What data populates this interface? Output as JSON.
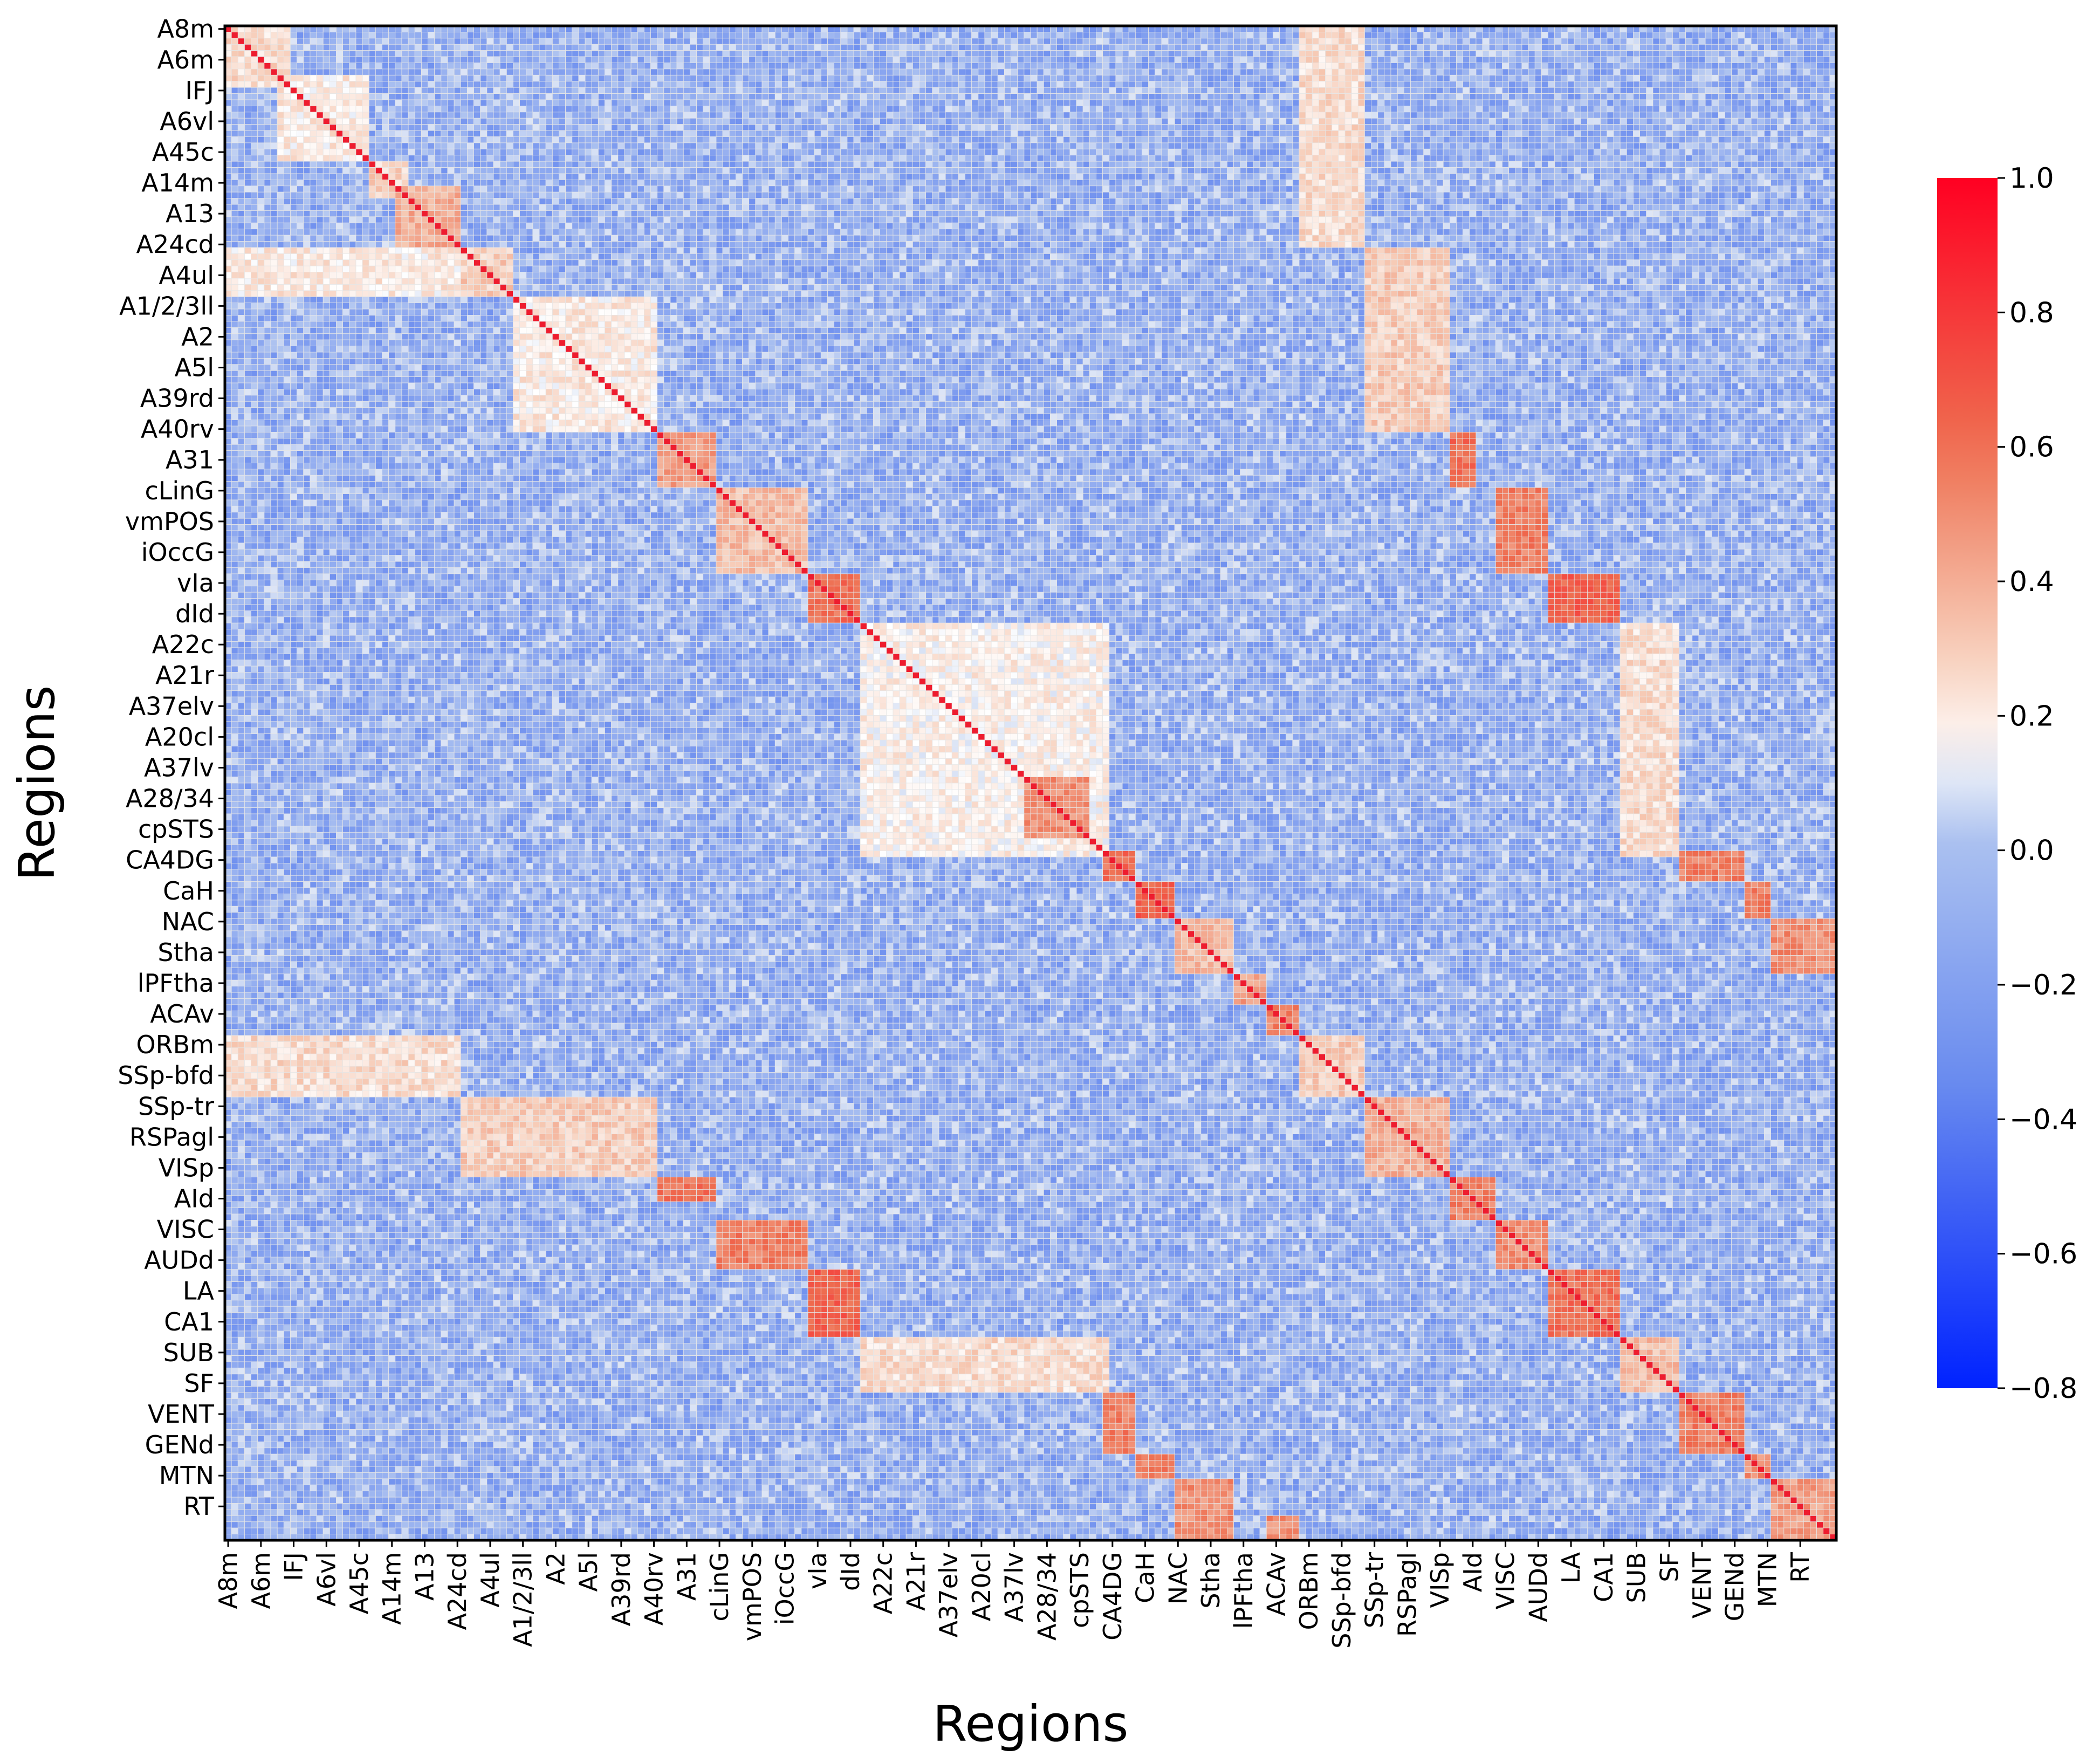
{
  "chart_data": {
    "type": "heatmap",
    "title": "",
    "xlabel": "Regions",
    "ylabel": "Regions",
    "grid_size": 246,
    "label_step": 5,
    "tick_labels": [
      "A8m",
      "A6m",
      "IFJ",
      "A6vl",
      "A45c",
      "A14m",
      "A13",
      "A24cd",
      "A4ul",
      "A1/2/3ll",
      "A2",
      "A5l",
      "A39rd",
      "A40rv",
      "A31",
      "cLinG",
      "vmPOS",
      "iOccG",
      "vIa",
      "dId",
      "A22c",
      "A21r",
      "A37elv",
      "A20cl",
      "A37lv",
      "A28/34",
      "cpSTS",
      "CA4DG",
      "CaH",
      "NAC",
      "Stha",
      "lPFtha",
      "ACAv",
      "ORBm",
      "SSp-bfd",
      "SSp-tr",
      "RSPagl",
      "VISp",
      "AId",
      "VISC",
      "AUDd",
      "LA",
      "CA1",
      "SUB",
      "SF",
      "VENT",
      "GENd",
      "MTN",
      "RT"
    ],
    "diagonal_value": 1.0,
    "background_range": [
      -0.3,
      0.1
    ],
    "blocks": [
      {
        "rows": [
          0,
          10
        ],
        "cols": [
          0,
          10
        ],
        "value": 0.25
      },
      {
        "rows": [
          8,
          22
        ],
        "cols": [
          8,
          22
        ],
        "value": 0.2
      },
      {
        "rows": [
          22,
          28
        ],
        "cols": [
          22,
          28
        ],
        "value": 0.28
      },
      {
        "rows": [
          26,
          36
        ],
        "cols": [
          26,
          36
        ],
        "value": 0.4
      },
      {
        "rows": [
          36,
          44
        ],
        "cols": [
          36,
          44
        ],
        "value": 0.3
      },
      {
        "rows": [
          36,
          44
        ],
        "cols": [
          0,
          44
        ],
        "value": 0.2
      },
      {
        "rows": [
          44,
          66
        ],
        "cols": [
          44,
          66
        ],
        "value": 0.2
      },
      {
        "rows": [
          66,
          75
        ],
        "cols": [
          66,
          75
        ],
        "value": 0.45
      },
      {
        "rows": [
          75,
          89
        ],
        "cols": [
          75,
          89
        ],
        "value": 0.35
      },
      {
        "rows": [
          89,
          97
        ],
        "cols": [
          89,
          97
        ],
        "value": 0.6
      },
      {
        "rows": [
          97,
          135
        ],
        "cols": [
          97,
          135
        ],
        "value": 0.18
      },
      {
        "rows": [
          122,
          132
        ],
        "cols": [
          122,
          132
        ],
        "value": 0.5
      },
      {
        "rows": [
          134,
          139
        ],
        "cols": [
          134,
          139
        ],
        "value": 0.6
      },
      {
        "rows": [
          139,
          145
        ],
        "cols": [
          139,
          145
        ],
        "value": 0.65
      },
      {
        "rows": [
          145,
          154
        ],
        "cols": [
          145,
          154
        ],
        "value": 0.35
      },
      {
        "rows": [
          154,
          159
        ],
        "cols": [
          154,
          159
        ],
        "value": 0.45
      },
      {
        "rows": [
          159,
          164
        ],
        "cols": [
          159,
          164
        ],
        "value": 0.55
      },
      {
        "rows": [
          164,
          174
        ],
        "cols": [
          164,
          174
        ],
        "value": 0.3
      },
      {
        "rows": [
          174,
          187
        ],
        "cols": [
          174,
          187
        ],
        "value": 0.4
      },
      {
        "rows": [
          187,
          194
        ],
        "cols": [
          187,
          194
        ],
        "value": 0.55
      },
      {
        "rows": [
          194,
          202
        ],
        "cols": [
          194,
          202
        ],
        "value": 0.5
      },
      {
        "rows": [
          202,
          213
        ],
        "cols": [
          202,
          213
        ],
        "value": 0.6
      },
      {
        "rows": [
          213,
          222
        ],
        "cols": [
          213,
          222
        ],
        "value": 0.35
      },
      {
        "rows": [
          222,
          232
        ],
        "cols": [
          222,
          232
        ],
        "value": 0.55
      },
      {
        "rows": [
          232,
          236
        ],
        "cols": [
          232,
          236
        ],
        "value": 0.5
      },
      {
        "rows": [
          236,
          246
        ],
        "cols": [
          236,
          246
        ],
        "value": 0.45
      },
      {
        "rows": [
          164,
          174
        ],
        "cols": [
          0,
          36
        ],
        "value": 0.25
      },
      {
        "rows": [
          174,
          187
        ],
        "cols": [
          36,
          66
        ],
        "value": 0.3
      },
      {
        "rows": [
          187,
          191
        ],
        "cols": [
          66,
          75
        ],
        "value": 0.6
      },
      {
        "rows": [
          194,
          202
        ],
        "cols": [
          75,
          89
        ],
        "value": 0.55
      },
      {
        "rows": [
          202,
          213
        ],
        "cols": [
          89,
          97
        ],
        "value": 0.65
      },
      {
        "rows": [
          213,
          222
        ],
        "cols": [
          97,
          135
        ],
        "value": 0.25
      },
      {
        "rows": [
          222,
          232
        ],
        "cols": [
          134,
          139
        ],
        "value": 0.55
      },
      {
        "rows": [
          232,
          236
        ],
        "cols": [
          139,
          145
        ],
        "value": 0.55
      },
      {
        "rows": [
          236,
          246
        ],
        "cols": [
          145,
          154
        ],
        "value": 0.5
      },
      {
        "rows": [
          242,
          248
        ],
        "cols": [
          159,
          164
        ],
        "value": 0.5
      },
      {
        "rows": [
          0,
          36
        ],
        "cols": [
          164,
          174
        ],
        "value": 0.25
      },
      {
        "rows": [
          36,
          66
        ],
        "cols": [
          174,
          187
        ],
        "value": 0.3
      },
      {
        "rows": [
          66,
          75
        ],
        "cols": [
          187,
          191
        ],
        "value": 0.6
      },
      {
        "rows": [
          75,
          89
        ],
        "cols": [
          194,
          202
        ],
        "value": 0.55
      },
      {
        "rows": [
          89,
          97
        ],
        "cols": [
          202,
          213
        ],
        "value": 0.65
      },
      {
        "rows": [
          97,
          135
        ],
        "cols": [
          213,
          222
        ],
        "value": 0.25
      },
      {
        "rows": [
          134,
          139
        ],
        "cols": [
          222,
          232
        ],
        "value": 0.55
      },
      {
        "rows": [
          139,
          145
        ],
        "cols": [
          232,
          236
        ],
        "value": 0.55
      },
      {
        "rows": [
          145,
          154
        ],
        "cols": [
          236,
          246
        ],
        "value": 0.5
      }
    ],
    "colorbar": {
      "min": -0.8,
      "max": 1.0,
      "ticks": [
        "1.0",
        "0.8",
        "0.6",
        "0.4",
        "0.2",
        "0.0",
        "−0.2",
        "−0.4",
        "−0.6",
        "−0.8"
      ],
      "tick_values": [
        1.0,
        0.8,
        0.6,
        0.4,
        0.2,
        0.0,
        -0.2,
        -0.4,
        -0.6,
        -0.8
      ]
    },
    "colormap": "coolwarm",
    "colors": {
      "low": "#0022ff",
      "mid_low": "#8fb0f0",
      "mid": "#ffffff",
      "mid_high": "#f7a98a",
      "high": "#ff0022",
      "diagonal": "#ee1c2e",
      "grid_line": "#e6e6e6"
    }
  }
}
